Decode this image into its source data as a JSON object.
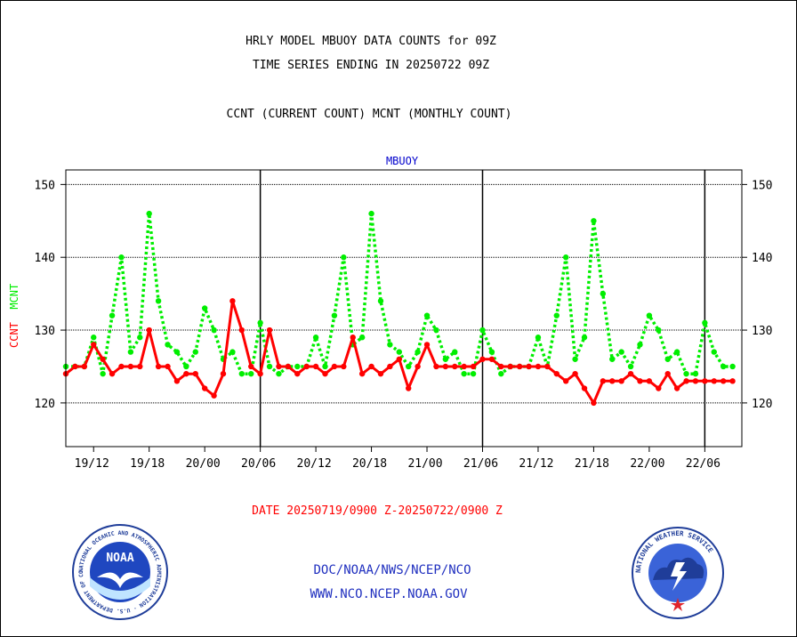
{
  "header": {
    "line1": "HRLY MODEL MBUOY DATA COUNTS for 09Z",
    "line2": "TIME SERIES ENDING IN 20250722 09Z",
    "line3": "CCNT (CURRENT COUNT) MCNT (MONTHLY COUNT)"
  },
  "date_range": "DATE 20250719/0900 Z-20250722/0900 Z",
  "footer": {
    "org": "DOC/NOAA/NWS/NCEP/NCO",
    "url": "WWW.NCO.NCEP.NOAA.GOV"
  },
  "logos": {
    "noaa_text": "NOAA",
    "noaa_ring": "NATIONAL OCEANIC AND ATMOSPHERIC ADMINISTRATION · U.S. DEPARTMENT OF COMMERCE",
    "nws_ring": "NATIONAL WEATHER SERVICE"
  },
  "colors": {
    "ccnt": "#ff0000",
    "mcnt": "#00ee00",
    "title_blue": "#0000cc",
    "date_red": "#ff0000"
  },
  "chart_data": {
    "type": "line",
    "title": "MBUOY",
    "ylabel_parts": [
      {
        "text": "CCNT",
        "color": "#ff0000"
      },
      {
        "text": "MCNT",
        "color": "#00ee00"
      }
    ],
    "ylim": [
      114,
      152
    ],
    "yticks": [
      120,
      130,
      140,
      150
    ],
    "x_hours": [
      0,
      73
    ],
    "xtick_labels": [
      "19/12",
      "19/18",
      "20/00",
      "20/06",
      "20/12",
      "20/18",
      "21/00",
      "21/06",
      "21/12",
      "21/18",
      "22/00",
      "22/06"
    ],
    "xtick_hours": [
      3,
      9,
      15,
      21,
      27,
      33,
      39,
      45,
      51,
      57,
      63,
      69
    ],
    "day_boundary_hours": [
      21,
      45,
      69
    ],
    "grid": true,
    "series": [
      {
        "name": "CCNT",
        "color": "#ff0000",
        "style": "solid",
        "x": [
          0,
          1,
          2,
          3,
          4,
          5,
          6,
          7,
          8,
          9,
          10,
          11,
          12,
          13,
          14,
          15,
          16,
          17,
          18,
          19,
          20,
          21,
          22,
          23,
          24,
          25,
          26,
          27,
          28,
          29,
          30,
          31,
          32,
          33,
          34,
          35,
          36,
          37,
          38,
          39,
          40,
          41,
          42,
          43,
          44,
          45,
          46,
          47,
          48,
          49,
          50,
          51,
          52,
          53,
          54,
          55,
          56,
          57,
          58,
          59,
          60,
          61,
          62,
          63,
          64,
          65,
          66,
          67,
          68,
          69,
          70,
          71,
          72
        ],
        "values": [
          124,
          125,
          125,
          128,
          126,
          124,
          125,
          125,
          125,
          130,
          125,
          125,
          123,
          124,
          124,
          122,
          121,
          124,
          134,
          130,
          125,
          124,
          130,
          125,
          125,
          124,
          125,
          125,
          124,
          125,
          125,
          129,
          124,
          125,
          124,
          125,
          126,
          122,
          125,
          128,
          125,
          125,
          125,
          125,
          125,
          126,
          126,
          125,
          125,
          125,
          125,
          125,
          125,
          124,
          123,
          124,
          122,
          120,
          123,
          123,
          123,
          124,
          123,
          123,
          122,
          124,
          122,
          123,
          123,
          123,
          123,
          123,
          123
        ]
      },
      {
        "name": "MCNT",
        "color": "#00ee00",
        "style": "dotted",
        "x": [
          0,
          1,
          2,
          3,
          4,
          5,
          6,
          7,
          8,
          9,
          10,
          11,
          12,
          13,
          14,
          15,
          16,
          17,
          18,
          19,
          20,
          21,
          22,
          23,
          24,
          25,
          26,
          27,
          28,
          29,
          30,
          31,
          32,
          33,
          34,
          35,
          36,
          37,
          38,
          39,
          40,
          41,
          42,
          43,
          44,
          45,
          46,
          47,
          48,
          49,
          50,
          51,
          52,
          53,
          54,
          55,
          56,
          57,
          58,
          59,
          60,
          61,
          62,
          63,
          64,
          65,
          66,
          67,
          68,
          69,
          70,
          71,
          72
        ],
        "values": [
          125,
          125,
          125,
          129,
          124,
          132,
          140,
          127,
          129,
          146,
          134,
          128,
          127,
          125,
          127,
          133,
          130,
          126,
          127,
          124,
          124,
          131,
          125,
          124,
          125,
          125,
          125,
          129,
          125,
          132,
          140,
          128,
          129,
          146,
          134,
          128,
          127,
          125,
          127,
          132,
          130,
          126,
          127,
          124,
          124,
          130,
          127,
          124,
          125,
          125,
          125,
          129,
          125,
          132,
          140,
          126,
          129,
          145,
          135,
          126,
          127,
          125,
          128,
          132,
          130,
          126,
          127,
          124,
          124,
          131,
          127,
          125,
          125
        ]
      }
    ]
  }
}
